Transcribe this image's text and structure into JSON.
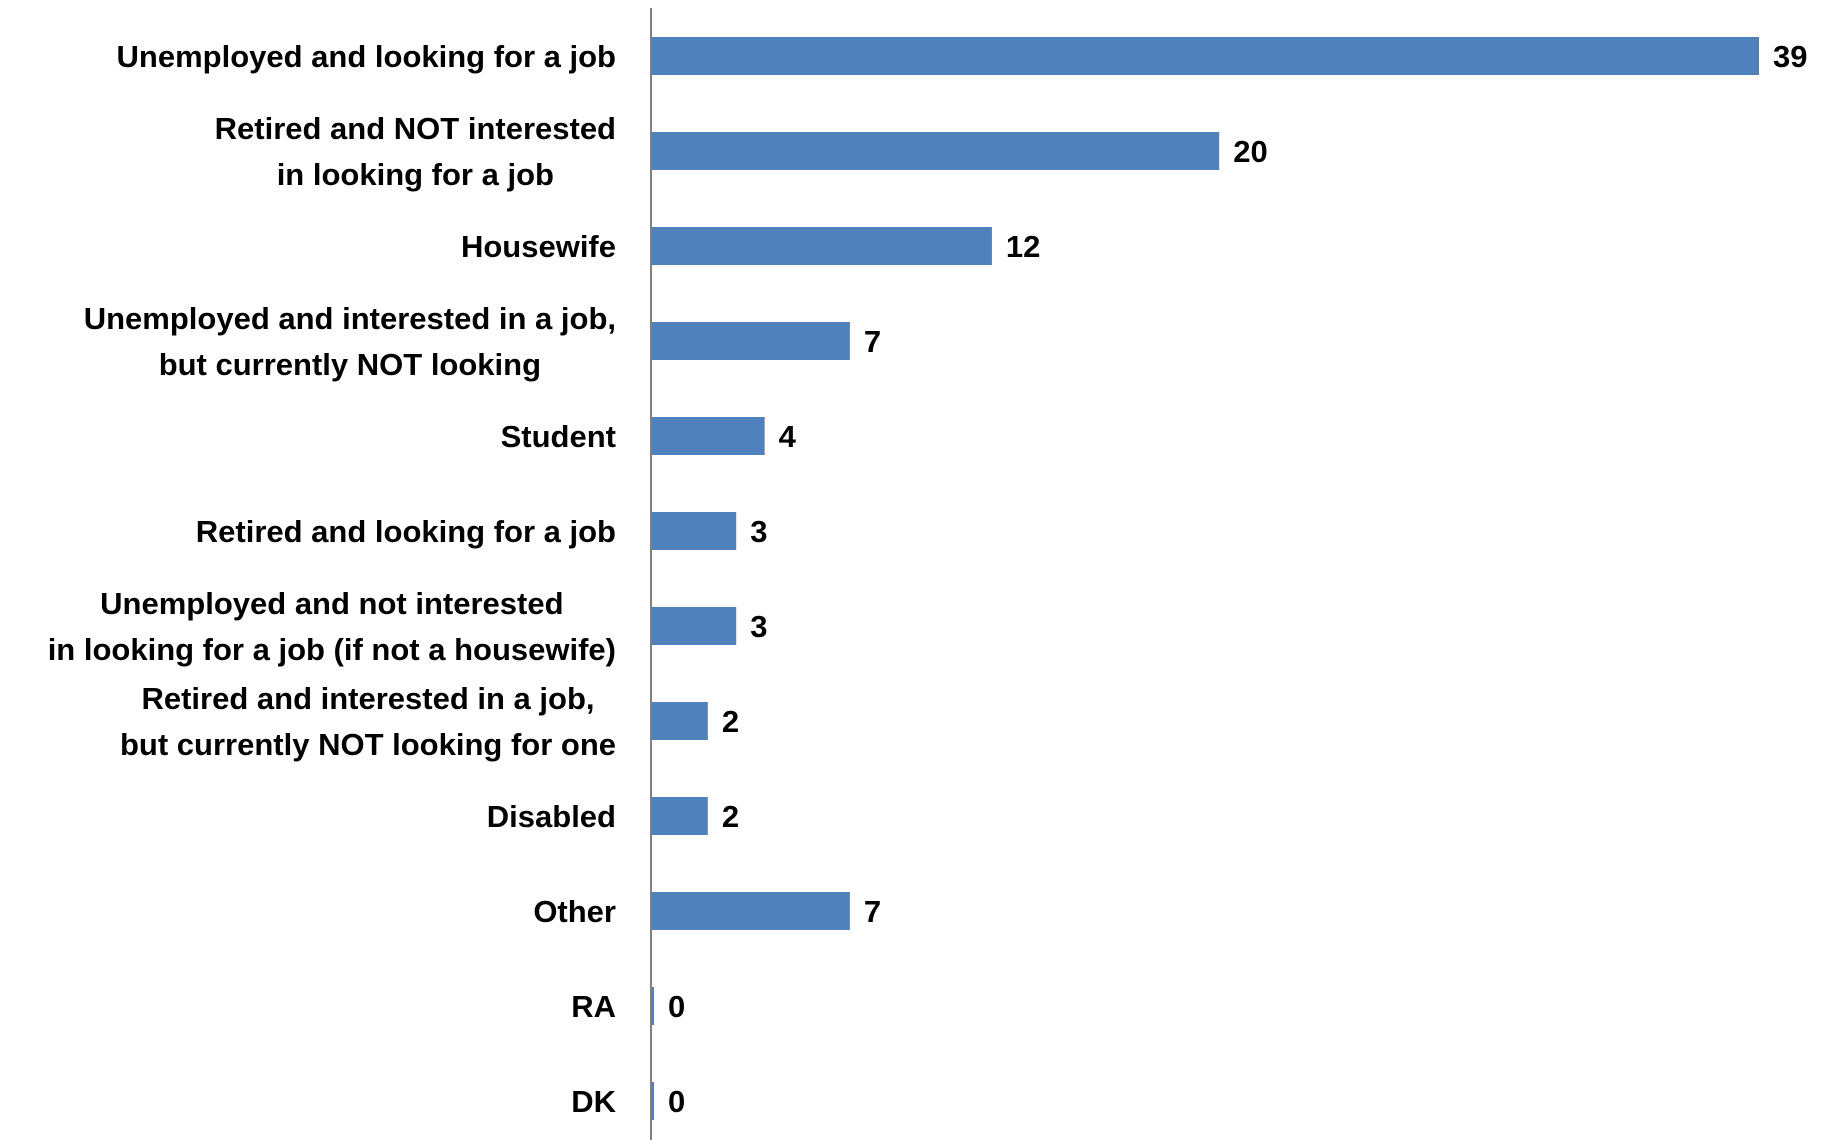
{
  "chart_data": {
    "type": "bar",
    "orientation": "horizontal",
    "categories": [
      [
        "Unemployed and looking for a job"
      ],
      [
        "Retired and NOT interested",
        "in looking for a job"
      ],
      [
        "Housewife"
      ],
      [
        "Unemployed and interested in a job,",
        "but currently NOT looking"
      ],
      [
        "Student"
      ],
      [
        "Retired and looking for a job"
      ],
      [
        "Unemployed and not interested",
        "in looking for a job (if not a housewife)"
      ],
      [
        "Retired and interested in a job,",
        "but currently NOT looking for one"
      ],
      [
        "Disabled"
      ],
      [
        "Other"
      ],
      [
        "RA"
      ],
      [
        "DK"
      ]
    ],
    "values": [
      39,
      20,
      12,
      7,
      4,
      3,
      3,
      2,
      2,
      7,
      0,
      0
    ],
    "value_labels": [
      "39",
      "20",
      "12",
      "7",
      "4",
      "3",
      "3",
      "2",
      "2",
      "7",
      "0",
      "0"
    ],
    "xlim": [
      0,
      39
    ],
    "bar_color": "#4f81bd",
    "axis_color": "#808080",
    "grid": false,
    "legend": "none"
  }
}
